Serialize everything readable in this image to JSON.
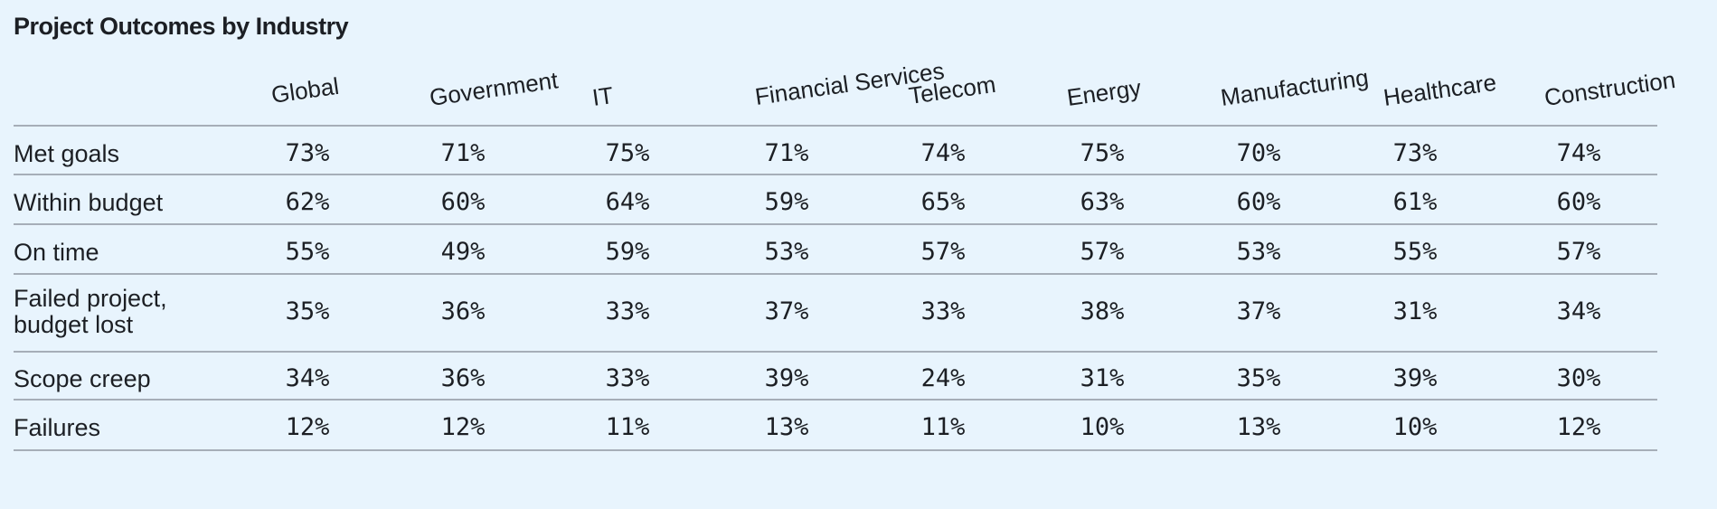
{
  "chart_data": {
    "type": "table",
    "title": "Project Outcomes by Industry",
    "columns": [
      "Global",
      "Government",
      "IT",
      "Financial Services",
      "Telecom",
      "Energy",
      "Manufacturing",
      "Healthcare",
      "Construction"
    ],
    "rows": [
      {
        "label": "Met goals",
        "values": [
          "73%",
          "71%",
          "75%",
          "71%",
          "74%",
          "75%",
          "70%",
          "73%",
          "74%"
        ]
      },
      {
        "label": "Within budget",
        "values": [
          "62%",
          "60%",
          "64%",
          "59%",
          "65%",
          "63%",
          "60%",
          "61%",
          "60%"
        ]
      },
      {
        "label": "On time",
        "values": [
          "55%",
          "49%",
          "59%",
          "53%",
          "57%",
          "57%",
          "53%",
          "55%",
          "57%"
        ]
      },
      {
        "label": "Failed project,\nbudget lost",
        "values": [
          "35%",
          "36%",
          "33%",
          "37%",
          "33%",
          "38%",
          "37%",
          "31%",
          "34%"
        ]
      },
      {
        "label": "Scope creep",
        "values": [
          "34%",
          "36%",
          "33%",
          "39%",
          "24%",
          "31%",
          "35%",
          "39%",
          "30%"
        ]
      },
      {
        "label": "Failures",
        "values": [
          "12%",
          "12%",
          "11%",
          "13%",
          "11%",
          "10%",
          "13%",
          "10%",
          "12%"
        ]
      }
    ]
  }
}
